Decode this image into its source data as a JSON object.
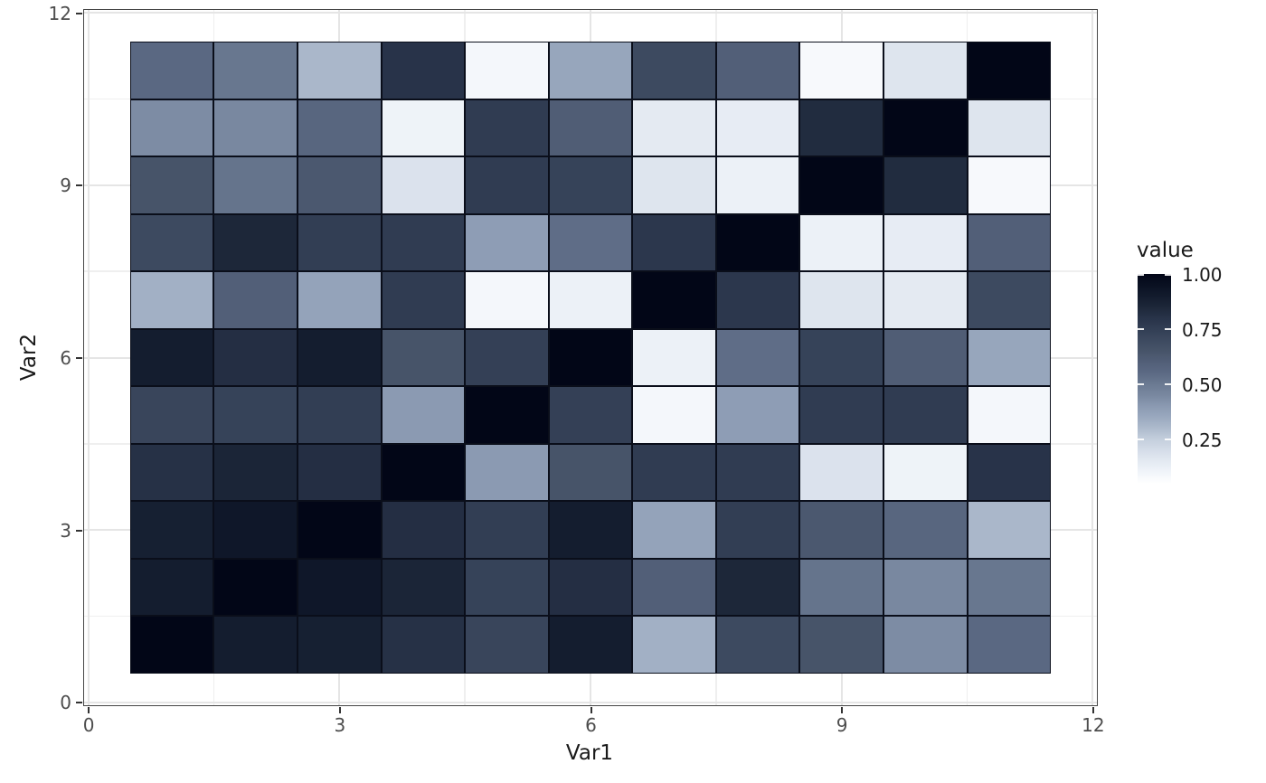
{
  "chart_data": {
    "type": "heatmap",
    "title": "",
    "xlabel": "Var1",
    "ylabel": "Var2",
    "x_ticks": [
      0,
      3,
      6,
      9,
      12
    ],
    "y_ticks": [
      0,
      3,
      6,
      9,
      12
    ],
    "x_minor_ticks": [
      1.5,
      4.5,
      7.5,
      10.5
    ],
    "y_minor_ticks": [
      1.5,
      4.5,
      7.5,
      10.5
    ],
    "xlim": [
      -0.05,
      12.05
    ],
    "ylim": [
      -0.05,
      12.05
    ],
    "var1_levels": [
      1,
      2,
      3,
      4,
      5,
      6,
      7,
      8,
      9,
      10,
      11
    ],
    "var2_levels": [
      1,
      2,
      3,
      4,
      5,
      6,
      7,
      8,
      9,
      10,
      11
    ],
    "rows_order": "row index 0 = Var2 1 (bottom) up to Var2 11 (top); columns Var1 1..11 left to right",
    "values": [
      [
        1.0,
        0.89,
        0.88,
        0.81,
        0.72,
        0.89,
        0.33,
        0.7,
        0.65,
        0.44,
        0.56
      ],
      [
        0.89,
        1.0,
        0.92,
        0.86,
        0.73,
        0.82,
        0.6,
        0.85,
        0.52,
        0.45,
        0.51
      ],
      [
        0.88,
        0.92,
        1.0,
        0.82,
        0.75,
        0.89,
        0.37,
        0.75,
        0.63,
        0.57,
        0.31
      ],
      [
        0.81,
        0.86,
        0.82,
        1.0,
        0.4,
        0.65,
        0.76,
        0.76,
        0.18,
        0.11,
        0.8
      ],
      [
        0.72,
        0.73,
        0.75,
        0.4,
        1.0,
        0.74,
        0.09,
        0.39,
        0.76,
        0.76,
        0.09
      ],
      [
        0.89,
        0.82,
        0.89,
        0.65,
        0.74,
        1.0,
        0.12,
        0.54,
        0.73,
        0.61,
        0.36
      ],
      [
        0.33,
        0.6,
        0.37,
        0.76,
        0.09,
        0.12,
        1.0,
        0.78,
        0.17,
        0.15,
        0.7
      ],
      [
        0.7,
        0.85,
        0.75,
        0.76,
        0.39,
        0.54,
        0.78,
        1.0,
        0.12,
        0.14,
        0.6
      ],
      [
        0.65,
        0.52,
        0.63,
        0.18,
        0.76,
        0.73,
        0.17,
        0.12,
        1.0,
        0.83,
        0.08
      ],
      [
        0.44,
        0.45,
        0.57,
        0.11,
        0.76,
        0.61,
        0.15,
        0.14,
        0.83,
        1.0,
        0.17
      ],
      [
        0.56,
        0.51,
        0.31,
        0.8,
        0.09,
        0.36,
        0.7,
        0.6,
        0.08,
        0.17,
        1.0
      ]
    ],
    "legend": {
      "title": "value",
      "tick_labels": [
        "1.00",
        "0.75",
        "0.50",
        "0.25"
      ],
      "tick_values": [
        1.0,
        0.75,
        0.5,
        0.25
      ],
      "domain": [
        0.05,
        1.0
      ]
    },
    "colors": {
      "gradient_stops": [
        [
          0.05,
          "#ffffff"
        ],
        [
          0.1,
          "#f1f5fa"
        ],
        [
          0.15,
          "#e4eaf2"
        ],
        [
          0.2,
          "#d5dde9"
        ],
        [
          0.25,
          "#c4cfdd"
        ],
        [
          0.3,
          "#aebbcd"
        ],
        [
          0.35,
          "#9aa9bf"
        ],
        [
          0.4,
          "#8b9ab2"
        ],
        [
          0.45,
          "#7988a0"
        ],
        [
          0.5,
          "#6b7a92"
        ],
        [
          0.55,
          "#5c6a84"
        ],
        [
          0.6,
          "#525f78"
        ],
        [
          0.65,
          "#475469"
        ],
        [
          0.7,
          "#3d4a60"
        ],
        [
          0.75,
          "#323e54"
        ],
        [
          0.8,
          "#283349"
        ],
        [
          0.85,
          "#1d2739"
        ],
        [
          0.9,
          "#121b2d"
        ],
        [
          0.95,
          "#0a1122"
        ],
        [
          1.0,
          "#020617"
        ]
      ],
      "tile_border": "#0a0e1a",
      "panel_border": "#454545",
      "grid_major": "#e5e5e5",
      "grid_minor": "#efefef",
      "axis_text": "#4d4d4d",
      "title_text": "#1a1a1a",
      "background": "#ffffff"
    },
    "grid": true,
    "legend_position": "right"
  }
}
